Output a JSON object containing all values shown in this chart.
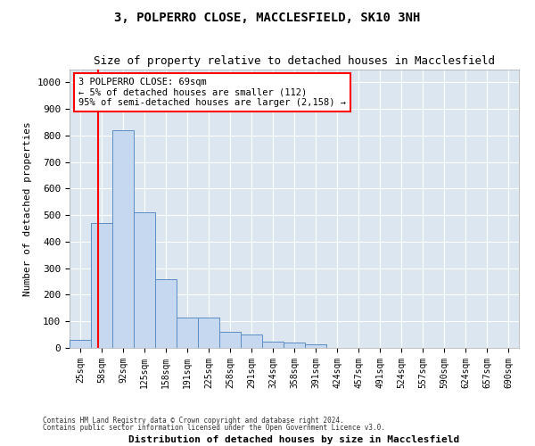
{
  "title": "3, POLPERRO CLOSE, MACCLESFIELD, SK10 3NH",
  "subtitle": "Size of property relative to detached houses in Macclesfield",
  "xlabel": "Distribution of detached houses by size in Macclesfield",
  "ylabel": "Number of detached properties",
  "footer_line1": "Contains HM Land Registry data © Crown copyright and database right 2024.",
  "footer_line2": "Contains public sector information licensed under the Open Government Licence v3.0.",
  "bin_labels": [
    "25sqm",
    "58sqm",
    "92sqm",
    "125sqm",
    "158sqm",
    "191sqm",
    "225sqm",
    "258sqm",
    "291sqm",
    "324sqm",
    "358sqm",
    "391sqm",
    "424sqm",
    "457sqm",
    "491sqm",
    "524sqm",
    "557sqm",
    "590sqm",
    "624sqm",
    "657sqm",
    "690sqm"
  ],
  "bar_values": [
    30,
    470,
    820,
    510,
    260,
    115,
    115,
    60,
    50,
    25,
    20,
    15,
    0,
    0,
    0,
    0,
    0,
    0,
    0,
    0,
    0
  ],
  "bar_color": "#c5d8f0",
  "bar_edge_color": "#5b8ec4",
  "ylim": [
    0,
    1050
  ],
  "yticks": [
    0,
    100,
    200,
    300,
    400,
    500,
    600,
    700,
    800,
    900,
    1000
  ],
  "annotation_line1": "3 POLPERRO CLOSE: 69sqm",
  "annotation_line2": "← 5% of detached houses are smaller (112)",
  "annotation_line3": "95% of semi-detached houses are larger (2,158) →",
  "background_color": "#ffffff",
  "grid_color": "#dce6f0"
}
